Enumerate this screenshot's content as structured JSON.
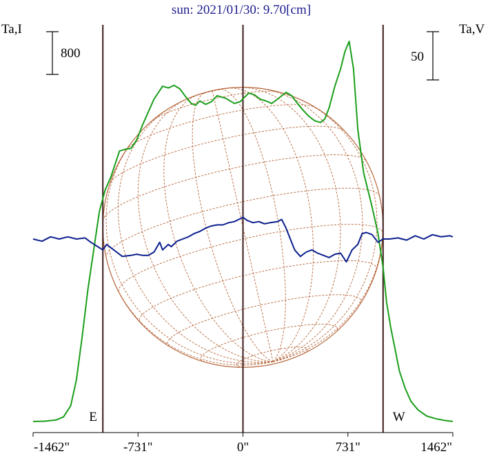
{
  "chart_data": {
    "type": "line",
    "title": "sun: 2021/01/30: 9.70[cm]",
    "ylabel_left": "Ta,I",
    "ylabel_right": "Ta,V",
    "scale_bar_left": "800",
    "scale_bar_right": "50",
    "xlim": [
      -1462,
      1462
    ],
    "x_ticks": [
      -1462,
      -731,
      0,
      731,
      1462
    ],
    "x_tick_labels": [
      "-1462\"",
      "-731\"",
      "0\"",
      "731\"",
      "1462\""
    ],
    "limb_markers": [
      {
        "label": "E",
        "x": -976
      },
      {
        "label": "W",
        "x": 976
      }
    ],
    "center_line_x": 0,
    "solar_disk_radius": 976,
    "grid": false,
    "colors": {
      "intensity": "#1a9e1a",
      "polarization": "#0a1e8c",
      "disk": "#b5653a",
      "markers": "#3a1a1a",
      "title": "#1a1a8c"
    },
    "series": [
      {
        "name": "I",
        "axis": "left",
        "points": [
          [
            -1462,
            17
          ],
          [
            -1380,
            20
          ],
          [
            -1300,
            35
          ],
          [
            -1250,
            70
          ],
          [
            -1200,
            200
          ],
          [
            -1160,
            500
          ],
          [
            -1120,
            1000
          ],
          [
            -1080,
            1550
          ],
          [
            -1040,
            2000
          ],
          [
            -1000,
            2450
          ],
          [
            -960,
            2700
          ],
          [
            -920,
            2850
          ],
          [
            -880,
            3050
          ],
          [
            -860,
            3150
          ],
          [
            -820,
            3170
          ],
          [
            -780,
            3180
          ],
          [
            -740,
            3280
          ],
          [
            -700,
            3450
          ],
          [
            -660,
            3600
          ],
          [
            -620,
            3750
          ],
          [
            -560,
            3900
          ],
          [
            -520,
            3880
          ],
          [
            -480,
            3910
          ],
          [
            -440,
            3870
          ],
          [
            -400,
            3780
          ],
          [
            -360,
            3700
          ],
          [
            -330,
            3680
          ],
          [
            -300,
            3730
          ],
          [
            -260,
            3690
          ],
          [
            -220,
            3720
          ],
          [
            -180,
            3790
          ],
          [
            -120,
            3760
          ],
          [
            -60,
            3700
          ],
          [
            -20,
            3720
          ],
          [
            40,
            3820
          ],
          [
            80,
            3800
          ],
          [
            120,
            3750
          ],
          [
            160,
            3730
          ],
          [
            200,
            3700
          ],
          [
            240,
            3750
          ],
          [
            300,
            3830
          ],
          [
            340,
            3790
          ],
          [
            380,
            3700
          ],
          [
            420,
            3620
          ],
          [
            460,
            3550
          ],
          [
            500,
            3500
          ],
          [
            540,
            3480
          ],
          [
            570,
            3520
          ],
          [
            600,
            3650
          ],
          [
            640,
            3900
          ],
          [
            680,
            4100
          ],
          [
            710,
            4300
          ],
          [
            740,
            4420
          ],
          [
            770,
            4100
          ],
          [
            800,
            3400
          ],
          [
            840,
            2900
          ],
          [
            900,
            2500
          ],
          [
            940,
            2200
          ],
          [
            976,
            1800
          ],
          [
            1000,
            1400
          ],
          [
            1030,
            1100
          ],
          [
            1060,
            850
          ],
          [
            1090,
            600
          ],
          [
            1130,
            400
          ],
          [
            1170,
            250
          ],
          [
            1220,
            150
          ],
          [
            1280,
            80
          ],
          [
            1340,
            50
          ],
          [
            1400,
            30
          ],
          [
            1462,
            17
          ]
        ]
      },
      {
        "name": "V",
        "axis": "right",
        "points": [
          [
            -1462,
            0
          ],
          [
            -1400,
            -2
          ],
          [
            -1340,
            2
          ],
          [
            -1280,
            0
          ],
          [
            -1220,
            2
          ],
          [
            -1160,
            0
          ],
          [
            -1100,
            1
          ],
          [
            -1060,
            -3
          ],
          [
            -1000,
            -8
          ],
          [
            -976,
            -10
          ],
          [
            -950,
            -5
          ],
          [
            -920,
            -8
          ],
          [
            -880,
            -12
          ],
          [
            -840,
            -16
          ],
          [
            -780,
            -15
          ],
          [
            -740,
            -14
          ],
          [
            -700,
            -15
          ],
          [
            -660,
            -15
          ],
          [
            -620,
            -12
          ],
          [
            -580,
            -3
          ],
          [
            -560,
            -10
          ],
          [
            -520,
            -5
          ],
          [
            -500,
            -7
          ],
          [
            -460,
            -2
          ],
          [
            -420,
            0
          ],
          [
            -380,
            2
          ],
          [
            -340,
            5
          ],
          [
            -300,
            7
          ],
          [
            -260,
            10
          ],
          [
            -220,
            12
          ],
          [
            -180,
            13
          ],
          [
            -140,
            13
          ],
          [
            -100,
            15
          ],
          [
            -60,
            16
          ],
          [
            -30,
            18
          ],
          [
            0,
            20
          ],
          [
            30,
            17
          ],
          [
            70,
            15
          ],
          [
            110,
            16
          ],
          [
            150,
            14
          ],
          [
            190,
            15
          ],
          [
            240,
            16
          ],
          [
            270,
            18
          ],
          [
            300,
            10
          ],
          [
            330,
            0
          ],
          [
            360,
            -10
          ],
          [
            400,
            -16
          ],
          [
            440,
            -12
          ],
          [
            480,
            -10
          ],
          [
            520,
            -13
          ],
          [
            560,
            -15
          ],
          [
            600,
            -17
          ],
          [
            640,
            -14
          ],
          [
            680,
            -13
          ],
          [
            720,
            -21
          ],
          [
            760,
            -10
          ],
          [
            800,
            -5
          ],
          [
            830,
            5
          ],
          [
            860,
            6
          ],
          [
            900,
            4
          ],
          [
            940,
            -3
          ],
          [
            976,
            0
          ],
          [
            1020,
            0
          ],
          [
            1080,
            1
          ],
          [
            1140,
            -1
          ],
          [
            1200,
            3
          ],
          [
            1260,
            0
          ],
          [
            1320,
            4
          ],
          [
            1380,
            2
          ],
          [
            1440,
            3
          ],
          [
            1462,
            2
          ]
        ]
      }
    ]
  }
}
